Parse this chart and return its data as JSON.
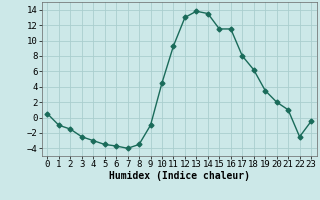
{
  "x": [
    0,
    1,
    2,
    3,
    4,
    5,
    6,
    7,
    8,
    9,
    10,
    11,
    12,
    13,
    14,
    15,
    16,
    17,
    18,
    19,
    20,
    21,
    22,
    23
  ],
  "y": [
    0.5,
    -1.0,
    -1.5,
    -2.5,
    -3.0,
    -3.5,
    -3.7,
    -4.0,
    -3.5,
    -1.0,
    4.5,
    9.3,
    13.0,
    13.8,
    13.5,
    11.5,
    11.5,
    8.0,
    6.2,
    3.5,
    2.0,
    1.0,
    -2.5,
    -0.5
  ],
  "line_color": "#1a6b5a",
  "marker": "D",
  "marker_size": 2.5,
  "bg_color": "#cce8e8",
  "grid_color": "#aacece",
  "xlabel": "Humidex (Indice chaleur)",
  "ylim": [
    -5,
    15
  ],
  "xlim": [
    -0.5,
    23.5
  ],
  "yticks": [
    -4,
    -2,
    0,
    2,
    4,
    6,
    8,
    10,
    12,
    14
  ],
  "xticks": [
    0,
    1,
    2,
    3,
    4,
    5,
    6,
    7,
    8,
    9,
    10,
    11,
    12,
    13,
    14,
    15,
    16,
    17,
    18,
    19,
    20,
    21,
    22,
    23
  ],
  "xlabel_fontsize": 7,
  "tick_fontsize": 6.5
}
